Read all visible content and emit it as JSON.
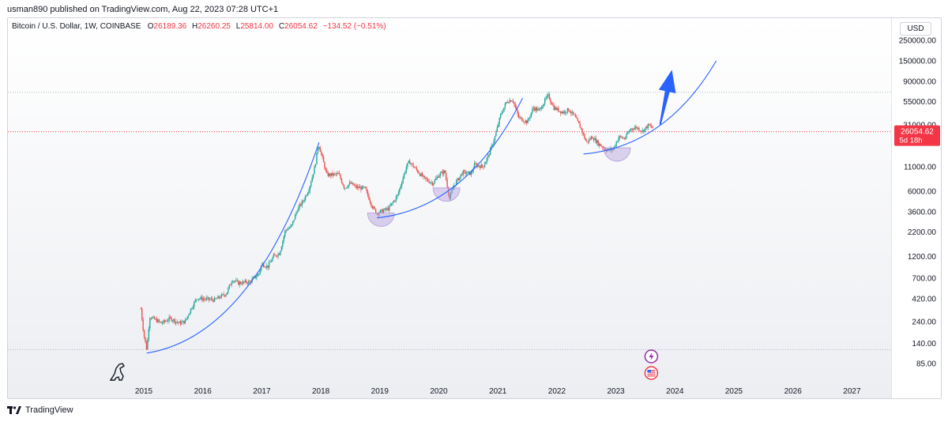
{
  "header": {
    "published": "usman890 published on TradingView.com, Aug 22, 2023 07:28 UTC+1"
  },
  "legend": {
    "symbol": "Bitcoin / U.S. Dollar, 1W, COINBASE",
    "o_label": "O",
    "o_value": "26189.36",
    "h_label": "H",
    "h_value": "26260.25",
    "l_label": "L",
    "l_value": "25814.00",
    "c_label": "C",
    "c_value": "26054.62",
    "change": "−134.52 (−0.51%)"
  },
  "currency": "USD",
  "price_tag": {
    "value": "26054.62",
    "countdown": "5d 18h"
  },
  "colors": {
    "up": "#26a69a",
    "down": "#ef5350",
    "curve": "#2962ff",
    "arrow": "#2962ff",
    "cup_fill": "#b39ddb",
    "price_line": "#f23645",
    "dotted": "#b2b5be"
  },
  "footer": {
    "brand": "TradingView"
  },
  "icons": [
    "dinosaur-icon",
    "lightning-icon",
    "us-flag-icon",
    "tradingview-logo-icon"
  ],
  "chart_data": {
    "type": "candlestick",
    "scale": "log",
    "timeframe": "1W",
    "y_ticks": [
      "250000.00",
      "150000.00",
      "90000.00",
      "55000.00",
      "31000.00",
      "11000.00",
      "6000.00",
      "3600.00",
      "2200.00",
      "1200.00",
      "700.00",
      "420.00",
      "240.00",
      "140.00",
      "85.00"
    ],
    "y_tick_values": [
      250000,
      150000,
      90000,
      55000,
      31000,
      11000,
      6000,
      3600,
      2200,
      1200,
      700,
      420,
      240,
      140,
      85
    ],
    "x_ticks": [
      "2015",
      "2016",
      "2017",
      "2018",
      "2019",
      "2020",
      "2021",
      "2022",
      "2023",
      "2024",
      "2025",
      "2026",
      "2027"
    ],
    "last_price": 26054.62,
    "horizontal_lines": [
      {
        "value": 69000,
        "style": "dotted"
      },
      {
        "value": 26054.62,
        "style": "dotted-red"
      },
      {
        "value": 120,
        "style": "dotted"
      }
    ],
    "price_path": [
      [
        2014.95,
        330
      ],
      [
        2015.0,
        175
      ],
      [
        2015.05,
        120
      ],
      [
        2015.1,
        270
      ],
      [
        2015.2,
        250
      ],
      [
        2015.3,
        230
      ],
      [
        2015.45,
        260
      ],
      [
        2015.6,
        230
      ],
      [
        2015.7,
        240
      ],
      [
        2015.8,
        330
      ],
      [
        2015.9,
        430
      ],
      [
        2016.0,
        420
      ],
      [
        2016.2,
        410
      ],
      [
        2016.4,
        480
      ],
      [
        2016.5,
        680
      ],
      [
        2016.6,
        620
      ],
      [
        2016.8,
        640
      ],
      [
        2016.95,
        780
      ],
      [
        2017.0,
        1000
      ],
      [
        2017.1,
        930
      ],
      [
        2017.2,
        1200
      ],
      [
        2017.3,
        1300
      ],
      [
        2017.4,
        2300
      ],
      [
        2017.5,
        2500
      ],
      [
        2017.6,
        3800
      ],
      [
        2017.7,
        4700
      ],
      [
        2017.8,
        6400
      ],
      [
        2017.9,
        11000
      ],
      [
        2017.96,
        19500
      ],
      [
        2018.02,
        14000
      ],
      [
        2018.1,
        9000
      ],
      [
        2018.2,
        9000
      ],
      [
        2018.3,
        9200
      ],
      [
        2018.4,
        6500
      ],
      [
        2018.5,
        7300
      ],
      [
        2018.6,
        6600
      ],
      [
        2018.75,
        6400
      ],
      [
        2018.88,
        4000
      ],
      [
        2018.95,
        3500
      ],
      [
        2019.0,
        3600
      ],
      [
        2019.15,
        3900
      ],
      [
        2019.3,
        5400
      ],
      [
        2019.45,
        11000
      ],
      [
        2019.5,
        12500
      ],
      [
        2019.6,
        10500
      ],
      [
        2019.75,
        8200
      ],
      [
        2019.9,
        7300
      ],
      [
        2020.0,
        9000
      ],
      [
        2020.1,
        9800
      ],
      [
        2020.18,
        5000
      ],
      [
        2020.25,
        6800
      ],
      [
        2020.4,
        9500
      ],
      [
        2020.55,
        9300
      ],
      [
        2020.6,
        11500
      ],
      [
        2020.75,
        11000
      ],
      [
        2020.85,
        15000
      ],
      [
        2020.95,
        23000
      ],
      [
        2021.05,
        40000
      ],
      [
        2021.15,
        55000
      ],
      [
        2021.25,
        58000
      ],
      [
        2021.35,
        37000
      ],
      [
        2021.5,
        33000
      ],
      [
        2021.6,
        47000
      ],
      [
        2021.7,
        44000
      ],
      [
        2021.85,
        64000
      ],
      [
        2021.95,
        47000
      ],
      [
        2022.1,
        42000
      ],
      [
        2022.2,
        45000
      ],
      [
        2022.3,
        38000
      ],
      [
        2022.4,
        29000
      ],
      [
        2022.5,
        20000
      ],
      [
        2022.6,
        23000
      ],
      [
        2022.7,
        19500
      ],
      [
        2022.85,
        16500
      ],
      [
        2022.95,
        16800
      ],
      [
        2023.05,
        23000
      ],
      [
        2023.15,
        22000
      ],
      [
        2023.25,
        28000
      ],
      [
        2023.35,
        29000
      ],
      [
        2023.45,
        26500
      ],
      [
        2023.55,
        30500
      ],
      [
        2023.62,
        29000
      ],
      [
        2023.64,
        26054
      ]
    ],
    "annotations": [
      {
        "type": "curve",
        "from": [
          2015.05,
          110
        ],
        "to": [
          2017.97,
          20000
        ]
      },
      {
        "type": "curve",
        "from": [
          2018.95,
          3100
        ],
        "to": [
          2021.42,
          60000
        ]
      },
      {
        "type": "curve",
        "from": [
          2022.45,
          15000
        ],
        "to": [
          2024.7,
          150000
        ]
      },
      {
        "type": "arrow",
        "from": [
          2023.75,
          31000
        ],
        "to": [
          2023.95,
          120000
        ]
      },
      {
        "type": "cup",
        "center": [
          2019.02,
          3500
        ]
      },
      {
        "type": "cup",
        "center": [
          2020.13,
          6500
        ]
      },
      {
        "type": "cup",
        "center": [
          2023.02,
          17500
        ]
      }
    ]
  }
}
